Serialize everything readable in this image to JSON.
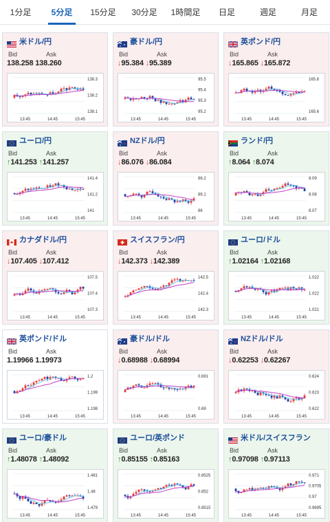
{
  "tabs": [
    {
      "label": "1分足",
      "active": false
    },
    {
      "label": "5分足",
      "active": true
    },
    {
      "label": "15分足",
      "active": false
    },
    {
      "label": "30分足",
      "active": false
    },
    {
      "label": "1時間足",
      "active": false
    },
    {
      "label": "日足",
      "active": false
    },
    {
      "label": "週足",
      "active": false
    },
    {
      "label": "月足",
      "active": false
    }
  ],
  "labels": {
    "bid": "Bid",
    "ask": "Ask"
  },
  "colors": {
    "down_bg": "#fbeeee",
    "up_bg": "#ecf6ec",
    "bull": "#e53935",
    "bear": "#1a3fa8",
    "ma_short": "#6ec1e4",
    "ma_long": "#c23fc8",
    "arrow_down": "#e2403a",
    "arrow_up": "#2e9a36"
  },
  "cards": [
    {
      "pair": "米ドル/円",
      "flag": "us",
      "trend": "down",
      "bid": "138.258",
      "ask": "138.260",
      "dir": "none",
      "yticks": [
        "138.3",
        "138.2",
        "138.1"
      ],
      "xticks": [
        "13:45",
        "14:45",
        "15:45"
      ]
    },
    {
      "pair": "豪ドル/円",
      "flag": "au",
      "trend": "down",
      "bid": "95.384",
      "ask": "95.389",
      "dir": "down",
      "yticks": [
        "95.5",
        "95.4",
        "95.3",
        "95.2"
      ],
      "xticks": [
        "13:45",
        "14:45",
        "15:45"
      ]
    },
    {
      "pair": "英ポンド/円",
      "flag": "gb",
      "trend": "down",
      "bid": "165.865",
      "ask": "165.872",
      "dir": "down",
      "yticks": [
        "165.8",
        "165.6"
      ],
      "xticks": [
        "13:45",
        "14:45",
        "15:45"
      ]
    },
    {
      "pair": "ユーロ/円",
      "flag": "eu",
      "trend": "up",
      "bid": "141.253",
      "ask": "141.257",
      "dir": "up",
      "yticks": [
        "141.4",
        "141.2",
        "141"
      ],
      "xticks": [
        "13:45",
        "14:45",
        "15:45"
      ]
    },
    {
      "pair": "NZドル/円",
      "flag": "nz",
      "trend": "down",
      "bid": "86.076",
      "ask": "86.084",
      "dir": "down",
      "yticks": [
        "86.2",
        "86.1",
        "86"
      ],
      "xticks": [
        "13:45",
        "14:45",
        "15:45"
      ]
    },
    {
      "pair": "ランド/円",
      "flag": "za",
      "trend": "up",
      "bid": "8.064",
      "ask": "8.074",
      "dir": "up",
      "yticks": [
        "8.09",
        "8.08",
        "8.07"
      ],
      "xticks": [
        "13:45",
        "14:45",
        "15:45"
      ]
    },
    {
      "pair": "カナダドル/円",
      "flag": "ca",
      "trend": "down",
      "bid": "107.405",
      "ask": "107.412",
      "dir": "down",
      "yticks": [
        "107.5",
        "107.4",
        "107.3"
      ],
      "xticks": [
        "13:45",
        "14:45",
        "15:45"
      ]
    },
    {
      "pair": "スイスフラン/円",
      "flag": "ch",
      "trend": "down",
      "bid": "142.373",
      "ask": "142.389",
      "dir": "down",
      "yticks": [
        "142.5",
        "142.4",
        "142.3"
      ],
      "xticks": [
        "13:45",
        "14:45",
        "15:45"
      ]
    },
    {
      "pair": "ユーロ/ドル",
      "flag": "eu",
      "trend": "up",
      "bid": "1.02164",
      "ask": "1.02168",
      "dir": "up",
      "yticks": [
        "1.022",
        "1.022",
        "1.021"
      ],
      "xticks": [
        "13:45",
        "14:45",
        "15:45"
      ]
    },
    {
      "pair": "英ポンド/ドル",
      "flag": "gb",
      "trend": "none",
      "bid": "1.19966",
      "ask": "1.19973",
      "dir": "none",
      "yticks": [
        "1.2",
        "1.199",
        "1.198"
      ],
      "xticks": [
        "13:45",
        "14:45",
        "15:45"
      ]
    },
    {
      "pair": "豪ドル/ドル",
      "flag": "au",
      "trend": "down",
      "bid": "0.68988",
      "ask": "0.68994",
      "dir": "down",
      "yticks": [
        "0.691",
        "0.69"
      ],
      "xticks": [
        "13:45",
        "14:45",
        "15:45"
      ]
    },
    {
      "pair": "NZドル/ドル",
      "flag": "nz",
      "trend": "down",
      "bid": "0.62253",
      "ask": "0.62267",
      "dir": "down",
      "yticks": [
        "0.624",
        "0.623",
        "0.622"
      ],
      "xticks": [
        "13:45",
        "14:45",
        "15:45"
      ]
    },
    {
      "pair": "ユーロ/豪ドル",
      "flag": "eu",
      "trend": "up",
      "bid": "1.48078",
      "ask": "1.48092",
      "dir": "up",
      "yticks": [
        "1.481",
        "1.48",
        "1.479"
      ],
      "xticks": [
        "13:45",
        "14:45",
        "15:45"
      ]
    },
    {
      "pair": "ユーロ/英ポンド",
      "flag": "eu",
      "trend": "up",
      "bid": "0.85155",
      "ask": "0.85163",
      "dir": "up",
      "yticks": [
        "0.8525",
        "0.852",
        "0.8515"
      ],
      "xticks": [
        "13:45",
        "14:45",
        "15:45"
      ]
    },
    {
      "pair": "米ドル/スイスフラン",
      "flag": "us",
      "trend": "up",
      "bid": "0.97098",
      "ask": "0.97113",
      "dir": "up",
      "yticks": [
        "0.971",
        "0.9705",
        "0.97",
        "0.9695"
      ],
      "xticks": [
        "13:45",
        "14:45",
        "15:45"
      ]
    }
  ]
}
